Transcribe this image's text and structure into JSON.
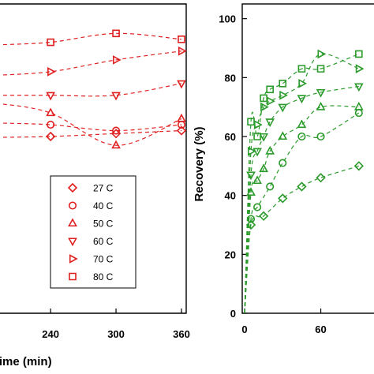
{
  "chart_data": [
    {
      "type": "scatter",
      "xlabel": "Time (min)",
      "x_ticks": [
        "240",
        "300",
        "360"
      ],
      "xlim": [
        190,
        360
      ],
      "ylim": [
        0,
        105
      ],
      "color": "#e02020",
      "legend_position": "lower-right",
      "series": [
        {
          "name": "27 C",
          "marker": "diamond",
          "x": [
            240,
            300,
            360
          ],
          "y": [
            60,
            61,
            62
          ]
        },
        {
          "name": "40 C",
          "marker": "circle",
          "x": [
            240,
            300,
            360
          ],
          "y": [
            64,
            62,
            64
          ]
        },
        {
          "name": "50 C",
          "marker": "triangle-up",
          "x": [
            240,
            300,
            360
          ],
          "y": [
            68,
            57,
            66
          ]
        },
        {
          "name": "60 C",
          "marker": "triangle-down",
          "x": [
            240,
            300,
            360
          ],
          "y": [
            74,
            74,
            78
          ]
        },
        {
          "name": "70 C",
          "marker": "triangle-right",
          "x": [
            240,
            300,
            360
          ],
          "y": [
            82,
            86,
            89
          ]
        },
        {
          "name": "80 C",
          "marker": "square",
          "x": [
            240,
            300,
            360
          ],
          "y": [
            92,
            95,
            93
          ]
        }
      ]
    },
    {
      "type": "scatter",
      "ylabel": "Recovery (%)",
      "y_ticks": [
        "0",
        "20",
        "40",
        "60",
        "80",
        "100"
      ],
      "x_ticks": [
        "0",
        "60"
      ],
      "xlim": [
        0,
        110
      ],
      "ylim": [
        0,
        105
      ],
      "color": "#2a9a2a",
      "series": [
        {
          "marker": "diamond",
          "x": [
            0,
            5,
            15,
            30,
            45,
            60,
            90
          ],
          "y": [
            0,
            30,
            33,
            39,
            43,
            46,
            50
          ]
        },
        {
          "marker": "circle",
          "x": [
            0,
            5,
            10,
            20,
            30,
            45,
            60,
            90
          ],
          "y": [
            0,
            32,
            36,
            43,
            51,
            60,
            60,
            68
          ]
        },
        {
          "marker": "triangle-up",
          "x": [
            0,
            5,
            10,
            15,
            20,
            30,
            45,
            60,
            90
          ],
          "y": [
            0,
            41,
            45,
            49,
            55,
            60,
            64,
            70,
            70
          ]
        },
        {
          "marker": "triangle-down",
          "x": [
            0,
            5,
            10,
            15,
            20,
            30,
            45,
            60,
            90
          ],
          "y": [
            0,
            47,
            55,
            60,
            65,
            70,
            73,
            75,
            77
          ]
        },
        {
          "marker": "triangle-right",
          "x": [
            0,
            5,
            10,
            15,
            20,
            30,
            45,
            60,
            90
          ],
          "y": [
            0,
            55,
            64,
            70,
            72,
            74,
            78,
            88,
            83
          ]
        },
        {
          "marker": "square",
          "x": [
            0,
            5,
            10,
            15,
            20,
            30,
            45,
            60,
            90
          ],
          "y": [
            0,
            65,
            60,
            73,
            76,
            78,
            83,
            83,
            88
          ]
        }
      ]
    }
  ]
}
